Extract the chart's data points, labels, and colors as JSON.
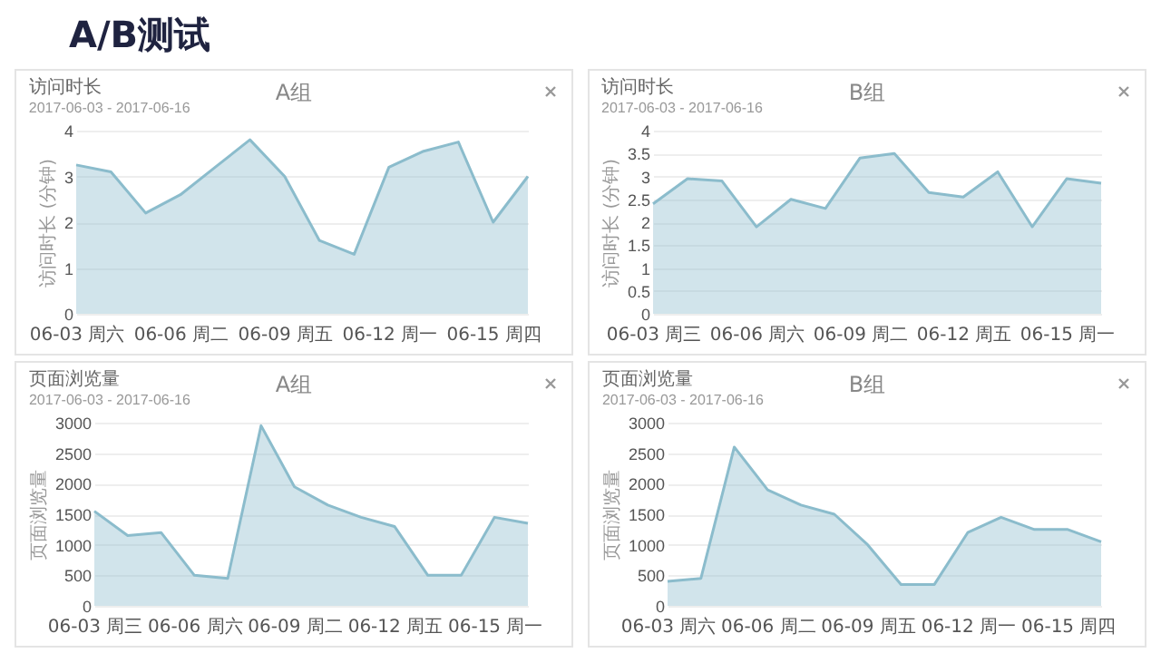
{
  "chart_data": [
    {
      "type": "area",
      "title": "访问时长",
      "subtitle": "2017-06-03 - 2017-06-16",
      "ylabel": "访问时长 (分钟)",
      "annotations": [
        "A/B测试",
        "A组"
      ],
      "categories": [
        "06-03 周六",
        null,
        null,
        "06-06 周二",
        null,
        null,
        "06-09 周五",
        null,
        null,
        "06-12 周一",
        null,
        null,
        "06-15 周四",
        null
      ],
      "series": [
        {
          "color": "#8bbccc",
          "values": [
            3.25,
            3.1,
            2.2,
            2.6,
            3.2,
            3.8,
            3.0,
            1.6,
            1.3,
            3.2,
            3.55,
            3.75,
            2.0,
            3.0
          ]
        }
      ],
      "ylim": [
        0,
        4
      ],
      "yticks": [
        0,
        1,
        2,
        3,
        4
      ],
      "grid": "y"
    },
    {
      "type": "area",
      "title": "访问时长",
      "subtitle": "2017-06-03 - 2017-06-16",
      "ylabel": "访问时长 (分钟)",
      "annotations": [
        "B组"
      ],
      "categories": [
        "06-03 周三",
        null,
        null,
        "06-06 周六",
        null,
        null,
        "06-09 周二",
        null,
        null,
        "06-12 周五",
        null,
        null,
        "06-15 周一",
        null
      ],
      "series": [
        {
          "color": "#8bbccc",
          "values": [
            2.4,
            2.95,
            2.9,
            1.9,
            2.5,
            2.3,
            3.4,
            3.5,
            2.65,
            2.55,
            3.1,
            1.9,
            2.95,
            2.85
          ]
        }
      ],
      "ylim": [
        0,
        4
      ],
      "yticks": [
        0,
        0.5,
        1,
        1.5,
        2,
        2.5,
        3,
        3.5,
        4
      ],
      "grid": "y"
    },
    {
      "type": "area",
      "title": "页面浏览量",
      "subtitle": "2017-06-03 - 2017-06-16",
      "ylabel": "页面浏览量",
      "annotations": [
        "A组"
      ],
      "categories": [
        "06-03 周三",
        null,
        null,
        "06-06 周六",
        null,
        null,
        "06-09 周二",
        null,
        null,
        "06-12 周五",
        null,
        null,
        "06-15 周一",
        null
      ],
      "series": [
        {
          "color": "#8bbccc",
          "values": [
            1550,
            1150,
            1200,
            500,
            450,
            2950,
            1950,
            1650,
            1450,
            1300,
            500,
            500,
            1450,
            1350
          ]
        }
      ],
      "ylim": [
        0,
        3000
      ],
      "yticks": [
        0,
        500,
        1000,
        1500,
        2000,
        2500,
        3000
      ],
      "grid": "y"
    },
    {
      "type": "area",
      "title": "页面浏览量",
      "subtitle": "2017-06-03 - 2017-06-16",
      "ylabel": "页面浏览量",
      "annotations": [
        "B组"
      ],
      "categories": [
        "06-03 周六",
        null,
        null,
        "06-06 周二",
        null,
        null,
        "06-09 周五",
        null,
        null,
        "06-12 周一",
        null,
        null,
        "06-15 周四",
        null
      ],
      "series": [
        {
          "color": "#8bbccc",
          "values": [
            400,
            450,
            2600,
            1900,
            1650,
            1500,
            1000,
            350,
            350,
            1200,
            1450,
            1250,
            1250,
            1050
          ]
        }
      ],
      "ylim": [
        0,
        3000
      ],
      "yticks": [
        0,
        500,
        1000,
        1500,
        2000,
        2500,
        3000
      ],
      "grid": "y"
    }
  ]
}
